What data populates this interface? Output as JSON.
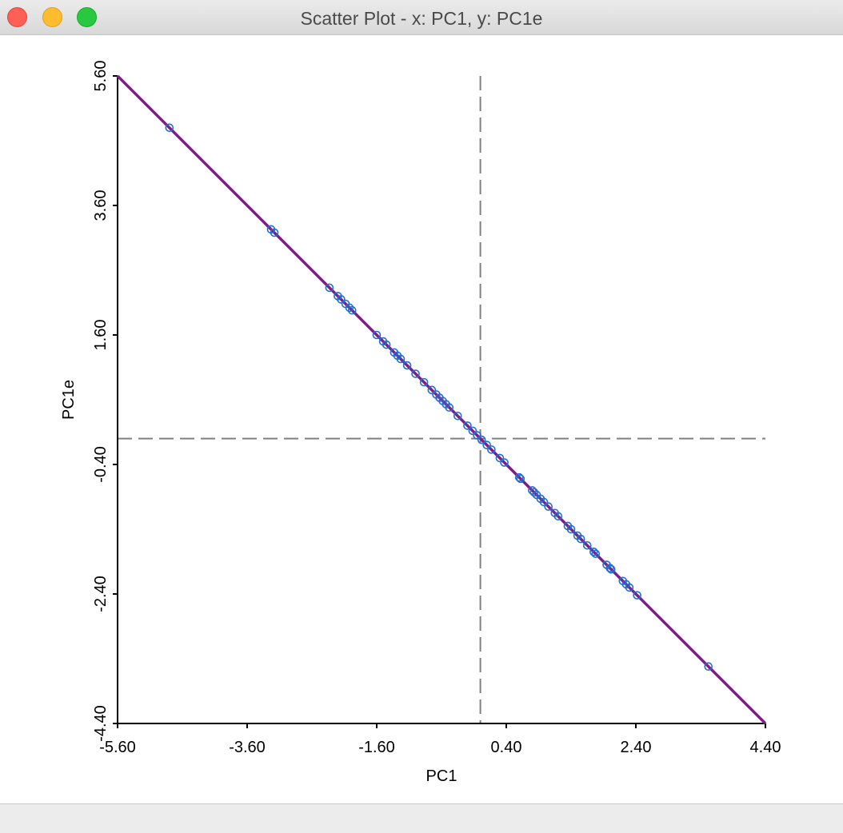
{
  "window": {
    "title": "Scatter Plot - x: PC1, y: PC1e"
  },
  "colors": {
    "regression": "#7b1f82",
    "points": "#1f6fd6",
    "axes": "#000000",
    "reference": "#808080"
  },
  "chart_data": {
    "type": "scatter",
    "xlabel": "PC1",
    "ylabel": "PC1e",
    "xlim": [
      -5.6,
      4.4
    ],
    "ylim": [
      -4.4,
      5.6
    ],
    "x_ticks": [
      "-5.60",
      "-3.60",
      "-1.60",
      "0.40",
      "2.40",
      "4.40"
    ],
    "y_ticks": [
      "-4.40",
      "-2.40",
      "-0.40",
      "1.60",
      "3.60",
      "5.60"
    ],
    "reference_lines": {
      "x_mean": 0.0,
      "y_mean": 0.0
    },
    "regression_line": {
      "slope": -1.0,
      "intercept": 0.0
    },
    "points": [
      [
        -4.8,
        4.8
      ],
      [
        -3.23,
        3.23
      ],
      [
        -3.18,
        3.18
      ],
      [
        -2.33,
        2.33
      ],
      [
        -2.2,
        2.2
      ],
      [
        -2.15,
        2.15
      ],
      [
        -2.08,
        2.08
      ],
      [
        -2.02,
        2.02
      ],
      [
        -1.98,
        1.98
      ],
      [
        -1.6,
        1.6
      ],
      [
        -1.5,
        1.5
      ],
      [
        -1.45,
        1.45
      ],
      [
        -1.33,
        1.33
      ],
      [
        -1.28,
        1.28
      ],
      [
        -1.23,
        1.23
      ],
      [
        -1.13,
        1.13
      ],
      [
        -1.0,
        1.0
      ],
      [
        -0.87,
        0.87
      ],
      [
        -0.75,
        0.75
      ],
      [
        -0.68,
        0.68
      ],
      [
        -0.63,
        0.63
      ],
      [
        -0.58,
        0.58
      ],
      [
        -0.53,
        0.53
      ],
      [
        -0.48,
        0.48
      ],
      [
        -0.35,
        0.35
      ],
      [
        -0.2,
        0.2
      ],
      [
        -0.12,
        0.12
      ],
      [
        -0.05,
        0.05
      ],
      [
        0.02,
        -0.02
      ],
      [
        0.1,
        -0.1
      ],
      [
        0.17,
        -0.17
      ],
      [
        0.3,
        -0.3
      ],
      [
        0.37,
        -0.37
      ],
      [
        0.6,
        -0.6
      ],
      [
        0.62,
        -0.62
      ],
      [
        0.8,
        -0.8
      ],
      [
        0.83,
        -0.83
      ],
      [
        0.87,
        -0.87
      ],
      [
        0.93,
        -0.93
      ],
      [
        0.98,
        -0.98
      ],
      [
        1.05,
        -1.05
      ],
      [
        1.15,
        -1.15
      ],
      [
        1.2,
        -1.2
      ],
      [
        1.35,
        -1.35
      ],
      [
        1.4,
        -1.4
      ],
      [
        1.5,
        -1.5
      ],
      [
        1.55,
        -1.55
      ],
      [
        1.65,
        -1.65
      ],
      [
        1.75,
        -1.75
      ],
      [
        1.78,
        -1.78
      ],
      [
        1.95,
        -1.95
      ],
      [
        2.0,
        -2.0
      ],
      [
        2.02,
        -2.02
      ],
      [
        2.2,
        -2.2
      ],
      [
        2.25,
        -2.25
      ],
      [
        2.3,
        -2.3
      ],
      [
        2.42,
        -2.42
      ],
      [
        3.52,
        -3.52
      ]
    ]
  }
}
